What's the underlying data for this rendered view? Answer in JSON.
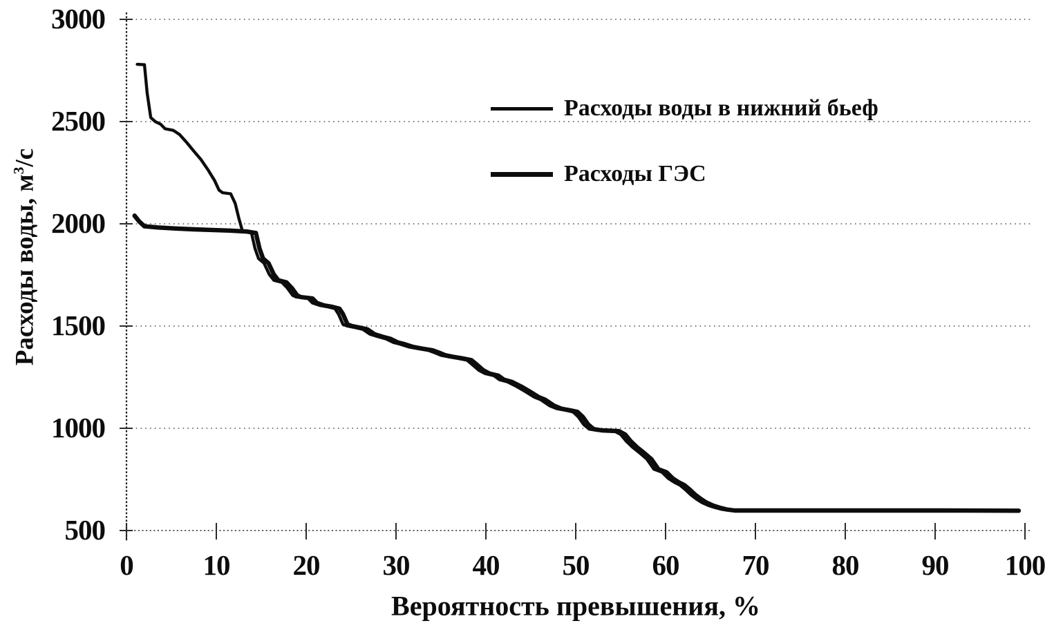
{
  "figure": {
    "background": "#ffffff",
    "ink_color": "#0d0d0d"
  },
  "chart_data": {
    "type": "line",
    "title": "",
    "xlabel": "Вероятность превышения, %",
    "ylabel": "Расходы воды, м³/с",
    "ylabel_parts": {
      "main": "Расходы воды, м",
      "sup": "3",
      "rest": "/с"
    },
    "xlim": [
      0,
      100
    ],
    "ylim": [
      500,
      3000
    ],
    "x_ticks": [
      0,
      10,
      20,
      30,
      40,
      50,
      60,
      70,
      80,
      90,
      100
    ],
    "y_ticks": [
      3000,
      2500,
      2000,
      1500,
      1000,
      500
    ],
    "grid": "horizontal dotted gridlines at each y tick",
    "legend_position": "inside upper right",
    "series": [
      {
        "name": "Расходы воды в нижний бьеф",
        "color": "#0d0d0d",
        "stroke_width": 4.4,
        "points": [
          [
            1.2,
            2780
          ],
          [
            2.0,
            2778
          ],
          [
            2.3,
            2640
          ],
          [
            2.7,
            2520
          ],
          [
            3.2,
            2500
          ],
          [
            3.8,
            2487
          ],
          [
            4.3,
            2465
          ],
          [
            5.2,
            2457
          ],
          [
            5.9,
            2437
          ],
          [
            6.7,
            2398
          ],
          [
            7.5,
            2355
          ],
          [
            8.3,
            2314
          ],
          [
            9.1,
            2262
          ],
          [
            9.8,
            2212
          ],
          [
            10.3,
            2165
          ],
          [
            10.7,
            2152
          ],
          [
            11.6,
            2147
          ],
          [
            12.1,
            2100
          ],
          [
            12.5,
            2028
          ],
          [
            12.9,
            1966
          ],
          [
            13.9,
            1958
          ],
          [
            14.3,
            1880
          ],
          [
            14.7,
            1830
          ],
          [
            15.3,
            1808
          ],
          [
            15.9,
            1752
          ],
          [
            16.4,
            1724
          ],
          [
            17.3,
            1714
          ],
          [
            17.9,
            1686
          ],
          [
            18.5,
            1650
          ],
          [
            18.9,
            1642
          ],
          [
            20.2,
            1635
          ],
          [
            20.7,
            1613
          ],
          [
            21.5,
            1601
          ],
          [
            22.3,
            1595
          ],
          [
            23.2,
            1585
          ],
          [
            23.6,
            1558
          ],
          [
            24.1,
            1508
          ],
          [
            24.6,
            1500
          ],
          [
            25.5,
            1492
          ],
          [
            26.3,
            1484
          ],
          [
            27.1,
            1460
          ],
          [
            28.0,
            1448
          ],
          [
            28.9,
            1437
          ],
          [
            29.7,
            1420
          ],
          [
            30.4,
            1412
          ],
          [
            31.4,
            1398
          ],
          [
            32.4,
            1390
          ],
          [
            33.6,
            1381
          ],
          [
            34.4,
            1368
          ],
          [
            35.0,
            1357
          ],
          [
            35.8,
            1350
          ],
          [
            36.9,
            1342
          ],
          [
            37.9,
            1333
          ],
          [
            38.4,
            1315
          ],
          [
            39.2,
            1284
          ],
          [
            39.9,
            1268
          ],
          [
            40.9,
            1257
          ],
          [
            41.5,
            1238
          ],
          [
            42.4,
            1227
          ],
          [
            43.4,
            1205
          ],
          [
            44.3,
            1182
          ],
          [
            45.4,
            1152
          ],
          [
            46.1,
            1140
          ],
          [
            47.1,
            1110
          ],
          [
            47.9,
            1096
          ],
          [
            48.9,
            1088
          ],
          [
            49.7,
            1080
          ],
          [
            50.3,
            1055
          ],
          [
            50.9,
            1018
          ],
          [
            51.5,
            996
          ],
          [
            52.4,
            990
          ],
          [
            54.3,
            986
          ],
          [
            55.0,
            970
          ],
          [
            55.6,
            938
          ],
          [
            56.3,
            908
          ],
          [
            57.1,
            880
          ],
          [
            57.9,
            850
          ],
          [
            58.7,
            800
          ],
          [
            59.6,
            785
          ],
          [
            60.3,
            755
          ],
          [
            61.0,
            735
          ],
          [
            61.6,
            722
          ],
          [
            62.2,
            700
          ],
          [
            62.8,
            675
          ],
          [
            63.4,
            655
          ],
          [
            64.0,
            638
          ],
          [
            64.8,
            622
          ],
          [
            65.5,
            612
          ],
          [
            66.3,
            603
          ],
          [
            67.2,
            598
          ],
          [
            70.0,
            598
          ],
          [
            80.0,
            598
          ],
          [
            90.0,
            598
          ],
          [
            99.2,
            597
          ]
        ]
      },
      {
        "name": "Расходы ГЭС",
        "color": "#0d0d0d",
        "stroke_width": 6.4,
        "points": [
          [
            0.9,
            2040
          ],
          [
            1.4,
            2012
          ],
          [
            2.0,
            1988
          ],
          [
            3.5,
            1982
          ],
          [
            5.5,
            1977
          ],
          [
            7.5,
            1973
          ],
          [
            9.5,
            1970
          ],
          [
            11.5,
            1967
          ],
          [
            13.4,
            1962
          ],
          [
            14.4,
            1955
          ],
          [
            14.8,
            1880
          ],
          [
            15.2,
            1830
          ],
          [
            15.8,
            1808
          ],
          [
            16.4,
            1752
          ],
          [
            16.9,
            1724
          ],
          [
            17.8,
            1714
          ],
          [
            18.4,
            1686
          ],
          [
            19.0,
            1650
          ],
          [
            19.4,
            1642
          ],
          [
            20.7,
            1635
          ],
          [
            21.2,
            1613
          ],
          [
            22.0,
            1601
          ],
          [
            22.8,
            1595
          ],
          [
            23.7,
            1585
          ],
          [
            24.1,
            1558
          ],
          [
            24.6,
            1508
          ],
          [
            25.1,
            1500
          ],
          [
            26.0,
            1492
          ],
          [
            26.8,
            1484
          ],
          [
            27.6,
            1460
          ],
          [
            28.5,
            1448
          ],
          [
            29.4,
            1437
          ],
          [
            30.2,
            1420
          ],
          [
            30.9,
            1412
          ],
          [
            31.9,
            1398
          ],
          [
            32.9,
            1390
          ],
          [
            34.1,
            1381
          ],
          [
            34.9,
            1368
          ],
          [
            35.5,
            1357
          ],
          [
            36.3,
            1350
          ],
          [
            37.4,
            1342
          ],
          [
            38.4,
            1333
          ],
          [
            38.9,
            1315
          ],
          [
            39.7,
            1284
          ],
          [
            40.4,
            1268
          ],
          [
            41.4,
            1257
          ],
          [
            42.0,
            1238
          ],
          [
            42.9,
            1227
          ],
          [
            43.9,
            1205
          ],
          [
            44.8,
            1182
          ],
          [
            45.9,
            1152
          ],
          [
            46.6,
            1140
          ],
          [
            47.6,
            1110
          ],
          [
            48.4,
            1096
          ],
          [
            49.4,
            1088
          ],
          [
            50.2,
            1080
          ],
          [
            50.8,
            1055
          ],
          [
            51.4,
            1018
          ],
          [
            52.0,
            996
          ],
          [
            52.9,
            990
          ],
          [
            54.8,
            986
          ],
          [
            55.5,
            970
          ],
          [
            56.1,
            938
          ],
          [
            56.8,
            908
          ],
          [
            57.6,
            880
          ],
          [
            58.4,
            850
          ],
          [
            59.2,
            800
          ],
          [
            60.1,
            785
          ],
          [
            60.8,
            755
          ],
          [
            61.5,
            735
          ],
          [
            62.1,
            722
          ],
          [
            62.7,
            700
          ],
          [
            63.3,
            675
          ],
          [
            63.9,
            655
          ],
          [
            64.5,
            638
          ],
          [
            65.3,
            622
          ],
          [
            66.0,
            612
          ],
          [
            66.8,
            603
          ],
          [
            67.7,
            598
          ],
          [
            70.5,
            598
          ],
          [
            80.5,
            598
          ],
          [
            90.5,
            598
          ],
          [
            99.3,
            597
          ]
        ]
      }
    ]
  },
  "legend": {
    "items": [
      {
        "label": "Расходы воды в нижний бьеф",
        "line_style": "thin black line"
      },
      {
        "label": "Расходы ГЭС",
        "line_style": "thick black line"
      }
    ]
  }
}
